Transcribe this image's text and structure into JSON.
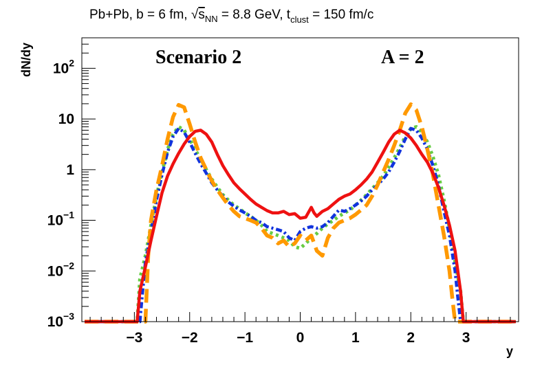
{
  "title": {
    "prefix": "Pb+Pb, b = 6 fm, ",
    "sqrt_symbol": "√",
    "s_letter": "s",
    "s_subscript": "NN",
    "energy_text": " = 8.8 GeV, t",
    "t_subscript": "clust",
    "suffix": " = 150 fm/c"
  },
  "annotations": {
    "scenario": "Scenario 2",
    "mass_number": "A = 2"
  },
  "chart_data": {
    "type": "line",
    "title": "Pb+Pb, b = 6 fm, √sNN = 8.8 GeV, tclust = 150 fm/c",
    "xlabel": "y",
    "ylabel": "dN/dy",
    "xlim": [
      -3.95,
      3.95
    ],
    "ylim": [
      0.001,
      400
    ],
    "yscale": "log",
    "grid": false,
    "legend": "none",
    "x_ticks": [
      -3,
      -2,
      -1,
      0,
      1,
      2,
      3
    ],
    "x_tick_labels": [
      "−3",
      "−2",
      "−1",
      "0",
      "1",
      "2",
      "3"
    ],
    "y_ticks": [
      {
        "value": 0.001,
        "base": "10",
        "exp": "−3"
      },
      {
        "value": 0.01,
        "base": "10",
        "exp": "−2"
      },
      {
        "value": 0.1,
        "base": "10",
        "exp": "−1"
      },
      {
        "value": 1,
        "base": "1",
        "exp": ""
      },
      {
        "value": 10,
        "base": "10",
        "exp": ""
      },
      {
        "value": 100,
        "base": "10",
        "exp": "2"
      }
    ],
    "series": [
      {
        "name": "solid-red",
        "color": "#ee1111",
        "style": "solid",
        "x": [
          -3.9,
          -2.95,
          -2.9,
          -2.8,
          -2.7,
          -2.6,
          -2.5,
          -2.4,
          -2.3,
          -2.2,
          -2.1,
          -2.0,
          -1.9,
          -1.8,
          -1.7,
          -1.6,
          -1.5,
          -1.4,
          -1.3,
          -1.2,
          -1.1,
          -1.0,
          -0.9,
          -0.8,
          -0.7,
          -0.6,
          -0.5,
          -0.4,
          -0.3,
          -0.2,
          -0.1,
          0.0,
          0.1,
          0.2,
          0.25,
          0.3,
          0.4,
          0.5,
          0.6,
          0.7,
          0.8,
          0.9,
          1.0,
          1.1,
          1.2,
          1.3,
          1.4,
          1.5,
          1.6,
          1.7,
          1.8,
          1.9,
          2.0,
          2.1,
          2.2,
          2.3,
          2.4,
          2.5,
          2.6,
          2.7,
          2.8,
          2.9,
          2.95,
          3.9
        ],
        "y": [
          0.001,
          0.001,
          0.004,
          0.012,
          0.04,
          0.12,
          0.35,
          0.75,
          1.3,
          2.1,
          3.2,
          4.5,
          5.7,
          6.0,
          5.0,
          3.5,
          2.0,
          1.2,
          0.8,
          0.55,
          0.42,
          0.33,
          0.26,
          0.21,
          0.18,
          0.155,
          0.14,
          0.14,
          0.15,
          0.13,
          0.135,
          0.11,
          0.115,
          0.18,
          0.14,
          0.12,
          0.15,
          0.17,
          0.21,
          0.26,
          0.3,
          0.33,
          0.4,
          0.5,
          0.65,
          0.9,
          1.4,
          2.2,
          3.5,
          5.0,
          6.0,
          5.3,
          4.2,
          3.0,
          2.0,
          1.4,
          0.85,
          0.45,
          0.2,
          0.08,
          0.025,
          0.004,
          0.001,
          0.001
        ]
      },
      {
        "name": "dashed-orange",
        "color": "#ff9900",
        "style": "dashed",
        "x": [
          -3.9,
          -2.8,
          -2.75,
          -2.7,
          -2.6,
          -2.5,
          -2.4,
          -2.3,
          -2.2,
          -2.1,
          -2.0,
          -1.9,
          -1.8,
          -1.7,
          -1.6,
          -1.5,
          -1.4,
          -1.3,
          -1.2,
          -1.1,
          -1.0,
          -0.9,
          -0.8,
          -0.7,
          -0.6,
          -0.5,
          -0.4,
          -0.3,
          -0.2,
          -0.1,
          0.0,
          0.1,
          0.2,
          0.3,
          0.4,
          0.5,
          0.6,
          0.7,
          0.8,
          0.9,
          1.0,
          1.1,
          1.2,
          1.3,
          1.4,
          1.5,
          1.6,
          1.7,
          1.8,
          1.9,
          2.0,
          2.1,
          2.2,
          2.3,
          2.4,
          2.5,
          2.6,
          2.7,
          2.75,
          2.8,
          3.9
        ],
        "y": [
          0.001,
          0.001,
          0.02,
          0.1,
          0.4,
          1.2,
          4.0,
          11.0,
          19.0,
          17.0,
          8.0,
          3.5,
          1.7,
          1.0,
          0.6,
          0.4,
          0.28,
          0.2,
          0.15,
          0.12,
          0.11,
          0.1,
          0.09,
          0.07,
          0.05,
          0.045,
          0.035,
          0.04,
          0.03,
          0.035,
          0.05,
          0.04,
          0.05,
          0.025,
          0.02,
          0.045,
          0.07,
          0.09,
          0.1,
          0.11,
          0.13,
          0.16,
          0.2,
          0.3,
          0.5,
          0.9,
          1.6,
          3.0,
          6.0,
          13.0,
          19.5,
          15.0,
          7.0,
          2.5,
          0.8,
          0.2,
          0.05,
          0.01,
          0.003,
          0.001,
          0.001
        ]
      },
      {
        "name": "dotted-green",
        "color": "#66cc44",
        "style": "dotted",
        "x": [
          -3.9,
          -2.95,
          -2.9,
          -2.8,
          -2.7,
          -2.6,
          -2.5,
          -2.4,
          -2.3,
          -2.2,
          -2.1,
          -2.0,
          -1.9,
          -1.8,
          -1.7,
          -1.6,
          -1.5,
          -1.4,
          -1.3,
          -1.2,
          -1.1,
          -1.0,
          -0.9,
          -0.8,
          -0.7,
          -0.6,
          -0.5,
          -0.4,
          -0.3,
          -0.2,
          -0.1,
          0.0,
          0.1,
          0.2,
          0.3,
          0.4,
          0.5,
          0.6,
          0.7,
          0.8,
          0.9,
          1.0,
          1.1,
          1.2,
          1.3,
          1.4,
          1.5,
          1.6,
          1.7,
          1.8,
          1.9,
          2.0,
          2.1,
          2.2,
          2.3,
          2.4,
          2.5,
          2.6,
          2.7,
          2.8,
          2.9,
          2.95,
          3.9
        ],
        "y": [
          0.001,
          0.001,
          0.007,
          0.02,
          0.08,
          0.3,
          0.9,
          2.5,
          5.0,
          7.0,
          6.0,
          4.0,
          2.5,
          1.6,
          1.0,
          0.65,
          0.45,
          0.32,
          0.25,
          0.2,
          0.17,
          0.14,
          0.12,
          0.1,
          0.08,
          0.06,
          0.055,
          0.05,
          0.045,
          0.04,
          0.03,
          0.028,
          0.035,
          0.045,
          0.055,
          0.07,
          0.085,
          0.1,
          0.12,
          0.14,
          0.16,
          0.2,
          0.25,
          0.32,
          0.42,
          0.55,
          0.75,
          1.1,
          1.7,
          2.7,
          4.5,
          6.5,
          7.0,
          5.5,
          3.5,
          1.8,
          0.8,
          0.25,
          0.07,
          0.015,
          0.004,
          0.001,
          0.001
        ]
      },
      {
        "name": "dashdot-blue",
        "color": "#1133dd",
        "style": "dashdot",
        "x": [
          -3.9,
          -2.9,
          -2.85,
          -2.8,
          -2.7,
          -2.6,
          -2.5,
          -2.4,
          -2.3,
          -2.2,
          -2.1,
          -2.0,
          -1.9,
          -1.8,
          -1.7,
          -1.6,
          -1.5,
          -1.4,
          -1.3,
          -1.2,
          -1.1,
          -1.0,
          -0.9,
          -0.8,
          -0.7,
          -0.6,
          -0.5,
          -0.4,
          -0.3,
          -0.2,
          -0.1,
          0.0,
          0.1,
          0.2,
          0.3,
          0.4,
          0.5,
          0.6,
          0.7,
          0.8,
          0.9,
          1.0,
          1.1,
          1.2,
          1.3,
          1.4,
          1.5,
          1.6,
          1.7,
          1.8,
          1.9,
          2.0,
          2.1,
          2.2,
          2.3,
          2.4,
          2.5,
          2.6,
          2.7,
          2.8,
          2.85,
          2.9,
          3.9
        ],
        "y": [
          0.001,
          0.001,
          0.004,
          0.015,
          0.06,
          0.25,
          0.8,
          2.2,
          4.5,
          6.5,
          5.5,
          3.5,
          2.1,
          1.3,
          0.85,
          0.55,
          0.4,
          0.3,
          0.23,
          0.19,
          0.16,
          0.14,
          0.12,
          0.1,
          0.09,
          0.075,
          0.07,
          0.065,
          0.06,
          0.045,
          0.04,
          0.06,
          0.07,
          0.075,
          0.07,
          0.075,
          0.09,
          0.12,
          0.16,
          0.15,
          0.17,
          0.2,
          0.24,
          0.3,
          0.4,
          0.5,
          0.65,
          0.9,
          1.4,
          2.3,
          4.0,
          6.5,
          6.0,
          4.2,
          2.5,
          1.2,
          0.5,
          0.15,
          0.05,
          0.01,
          0.003,
          0.001,
          0.001
        ]
      }
    ]
  }
}
